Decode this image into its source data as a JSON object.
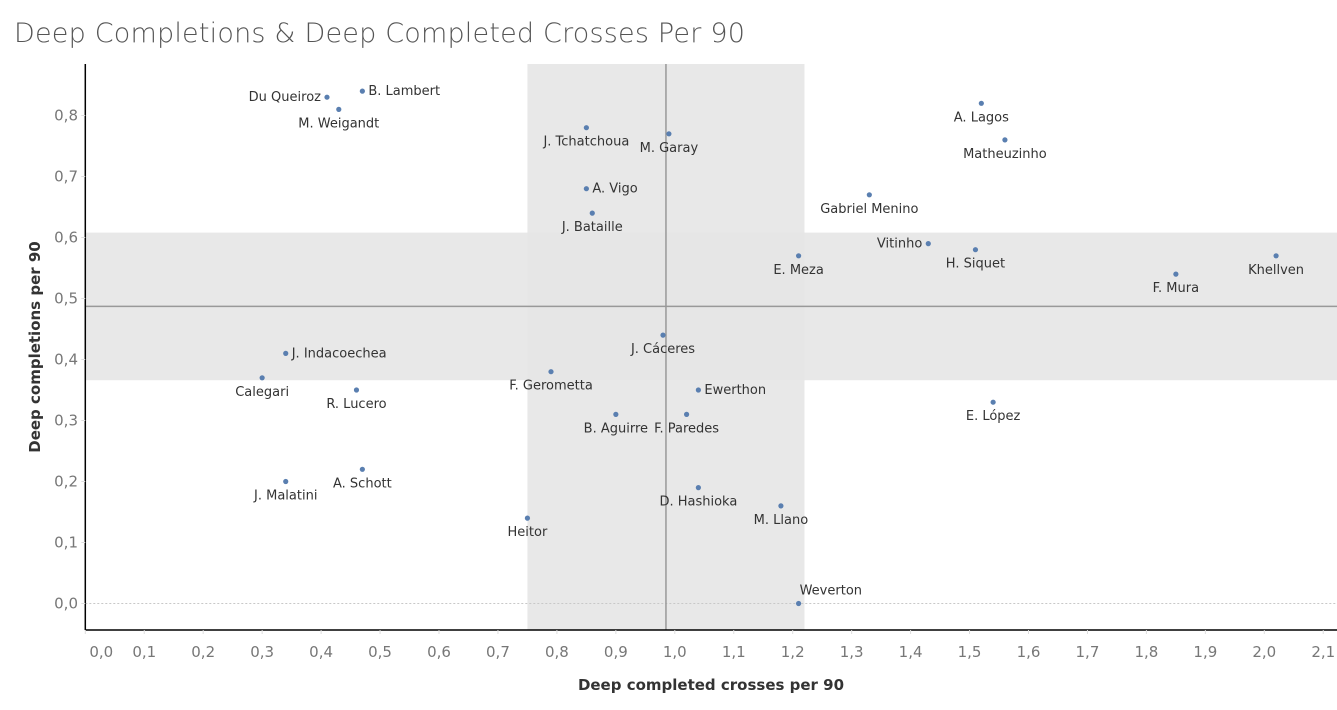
{
  "chart_data": {
    "type": "scatter",
    "title": "Deep Completions & Deep Completed Crosses Per 90",
    "xlabel": "Deep completed crosses per 90",
    "ylabel": "Deep completions per 90",
    "xlim": [
      0,
      2.1
    ],
    "ylim": [
      0,
      0.9
    ],
    "x_ticks": [
      "0,0",
      "0,1",
      "0,2",
      "0,3",
      "0,4",
      "0,5",
      "0,6",
      "0,7",
      "0,8",
      "0,9",
      "1,0",
      "1,1",
      "1,2",
      "1,3",
      "1,4",
      "1,5",
      "1,6",
      "1,7",
      "1,8",
      "1,9",
      "2,0",
      "2,1"
    ],
    "y_ticks": [
      "0,0",
      "0,1",
      "0,2",
      "0,3",
      "0,4",
      "0,5",
      "0,6",
      "0,7",
      "0,8"
    ],
    "reference_lines": {
      "x": 0.985,
      "y": 0.487
    },
    "bands": {
      "x": [
        0.75,
        1.22
      ],
      "y": [
        0.366,
        0.608
      ]
    },
    "colors": {
      "point": "#5a7fb0",
      "band": "#e6e6e6",
      "refline": "#999999"
    },
    "points": [
      {
        "name": "B. Lambert",
        "x": 0.47,
        "y": 0.84,
        "label_pos": "right"
      },
      {
        "name": "Du Queiroz",
        "x": 0.41,
        "y": 0.83,
        "label_pos": "left"
      },
      {
        "name": "M. Weigandt",
        "x": 0.43,
        "y": 0.81,
        "label_pos": "below"
      },
      {
        "name": "J. Tchatchoua",
        "x": 0.85,
        "y": 0.78,
        "label_pos": "below"
      },
      {
        "name": "M. Garay",
        "x": 0.99,
        "y": 0.77,
        "label_pos": "below"
      },
      {
        "name": "A. Vigo",
        "x": 0.85,
        "y": 0.68,
        "label_pos": "right"
      },
      {
        "name": "J. Bataille",
        "x": 0.86,
        "y": 0.64,
        "label_pos": "below"
      },
      {
        "name": "A. Lagos",
        "x": 1.52,
        "y": 0.82,
        "label_pos": "below"
      },
      {
        "name": "Matheuzinho",
        "x": 1.56,
        "y": 0.76,
        "label_pos": "below"
      },
      {
        "name": "Gabriel Menino",
        "x": 1.33,
        "y": 0.67,
        "label_pos": "below"
      },
      {
        "name": "Vitinho",
        "x": 1.43,
        "y": 0.59,
        "label_pos": "left"
      },
      {
        "name": "H. Siquet",
        "x": 1.51,
        "y": 0.58,
        "label_pos": "below"
      },
      {
        "name": "E. Meza",
        "x": 1.21,
        "y": 0.57,
        "label_pos": "below"
      },
      {
        "name": "Khellven",
        "x": 2.02,
        "y": 0.57,
        "label_pos": "below"
      },
      {
        "name": "F. Mura",
        "x": 1.85,
        "y": 0.54,
        "label_pos": "below"
      },
      {
        "name": "J. Cáceres",
        "x": 0.98,
        "y": 0.44,
        "label_pos": "below"
      },
      {
        "name": "J. Indacoechea",
        "x": 0.34,
        "y": 0.41,
        "label_pos": "right"
      },
      {
        "name": "Calegari",
        "x": 0.3,
        "y": 0.37,
        "label_pos": "below"
      },
      {
        "name": "R. Lucero",
        "x": 0.46,
        "y": 0.35,
        "label_pos": "below"
      },
      {
        "name": "F. Gerometta",
        "x": 0.79,
        "y": 0.38,
        "label_pos": "below"
      },
      {
        "name": "Ewerthon",
        "x": 1.04,
        "y": 0.35,
        "label_pos": "right"
      },
      {
        "name": "B. Aguirre",
        "x": 0.9,
        "y": 0.31,
        "label_pos": "below"
      },
      {
        "name": "F. Paredes",
        "x": 1.02,
        "y": 0.31,
        "label_pos": "below"
      },
      {
        "name": "E. López",
        "x": 1.54,
        "y": 0.33,
        "label_pos": "below"
      },
      {
        "name": "A. Schott",
        "x": 0.47,
        "y": 0.22,
        "label_pos": "below"
      },
      {
        "name": "J. Malatini",
        "x": 0.34,
        "y": 0.2,
        "label_pos": "below"
      },
      {
        "name": "D. Hashioka",
        "x": 1.04,
        "y": 0.19,
        "label_pos": "below"
      },
      {
        "name": "M. Llano",
        "x": 1.18,
        "y": 0.16,
        "label_pos": "below"
      },
      {
        "name": "Heitor",
        "x": 0.75,
        "y": 0.14,
        "label_pos": "below"
      },
      {
        "name": "Weverton",
        "x": 1.21,
        "y": 0.0,
        "label_pos": "above-right"
      }
    ]
  }
}
